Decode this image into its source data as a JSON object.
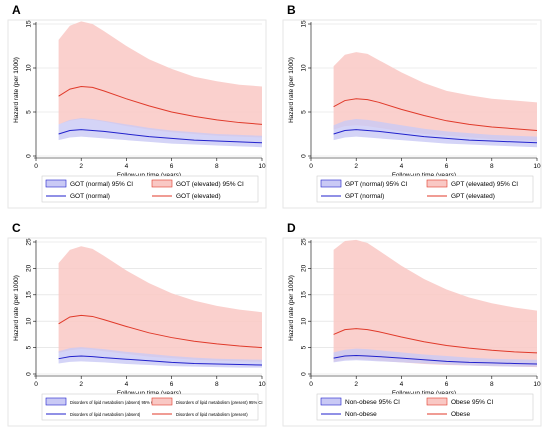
{
  "colors": {
    "normal_line": "#2222cc",
    "normal_fill": "#c9c9f5",
    "elevated_line": "#e03a2a",
    "elevated_fill": "#f9c8c4",
    "frame": "#e6e6e6",
    "plot_bg": "#ffffff",
    "grid": "#dcdcdc"
  },
  "chart_data": [
    {
      "panel": "A",
      "type": "area",
      "xlabel": "Follow-up time (years)",
      "ylabel": "Hazard rate (per 1000)",
      "xlim": [
        0,
        10
      ],
      "ylim": [
        0,
        15
      ],
      "xticks": [
        0,
        2,
        4,
        6,
        8,
        10
      ],
      "yticks": [
        0,
        5,
        10,
        15
      ],
      "x": [
        1,
        1.5,
        2,
        2.5,
        3,
        4,
        5,
        6,
        7,
        8,
        9,
        10
      ],
      "series": [
        {
          "name": "GOT (normal)",
          "color_key": "normal",
          "values": [
            2.5,
            2.9,
            3.0,
            2.9,
            2.8,
            2.5,
            2.2,
            2.0,
            1.8,
            1.7,
            1.6,
            1.5
          ],
          "lower": [
            1.8,
            2.1,
            2.2,
            2.1,
            2.0,
            1.8,
            1.6,
            1.4,
            1.3,
            1.2,
            1.1,
            1.0
          ],
          "upper": [
            3.6,
            4.1,
            4.3,
            4.2,
            4.0,
            3.6,
            3.2,
            2.9,
            2.7,
            2.5,
            2.4,
            2.3
          ]
        },
        {
          "name": "GOT (elevated)",
          "color_key": "elevated",
          "values": [
            6.8,
            7.6,
            7.9,
            7.8,
            7.4,
            6.5,
            5.7,
            5.0,
            4.5,
            4.1,
            3.8,
            3.6
          ],
          "lower": [
            3.6,
            4.0,
            4.2,
            4.1,
            3.9,
            3.4,
            3.0,
            2.7,
            2.5,
            2.3,
            2.2,
            2.1
          ],
          "upper": [
            13.2,
            14.8,
            15.3,
            15.0,
            14.2,
            12.5,
            11.0,
            9.9,
            9.0,
            8.5,
            8.1,
            7.9
          ]
        }
      ],
      "legend": {
        "position": "bottom",
        "entries": [
          "GOT (normal) 95% CI",
          "GOT (elevated) 95% CI",
          "GOT (normal)",
          "GOT (elevated)"
        ],
        "small": false
      }
    },
    {
      "panel": "B",
      "type": "area",
      "xlabel": "Follow-up time (years)",
      "ylabel": "Hazard rate (per 1000)",
      "xlim": [
        0,
        10
      ],
      "ylim": [
        0,
        15
      ],
      "xticks": [
        0,
        2,
        4,
        6,
        8,
        10
      ],
      "yticks": [
        0,
        5,
        10,
        15
      ],
      "x": [
        1,
        1.5,
        2,
        2.5,
        3,
        4,
        5,
        6,
        7,
        8,
        9,
        10
      ],
      "series": [
        {
          "name": "GPT (normal)",
          "color_key": "normal",
          "values": [
            2.5,
            2.9,
            3.0,
            2.9,
            2.8,
            2.5,
            2.2,
            2.0,
            1.8,
            1.7,
            1.6,
            1.5
          ],
          "lower": [
            1.8,
            2.1,
            2.2,
            2.1,
            2.0,
            1.8,
            1.6,
            1.4,
            1.3,
            1.2,
            1.1,
            1.0
          ],
          "upper": [
            3.5,
            4.0,
            4.2,
            4.1,
            3.9,
            3.5,
            3.1,
            2.8,
            2.6,
            2.4,
            2.3,
            2.2
          ]
        },
        {
          "name": "GPT (elevated)",
          "color_key": "elevated",
          "values": [
            5.6,
            6.3,
            6.5,
            6.4,
            6.1,
            5.3,
            4.6,
            4.0,
            3.6,
            3.3,
            3.1,
            2.9
          ],
          "lower": [
            3.0,
            3.4,
            3.5,
            3.4,
            3.2,
            2.8,
            2.5,
            2.3,
            2.1,
            1.9,
            1.8,
            1.7
          ],
          "upper": [
            10.2,
            11.5,
            11.8,
            11.6,
            10.9,
            9.5,
            8.3,
            7.4,
            6.9,
            6.5,
            6.3,
            6.1
          ]
        }
      ],
      "legend": {
        "position": "bottom",
        "entries": [
          "GPT (normal) 95% CI",
          "GPT (elevated) 95% CI",
          "GPT (normal)",
          "GPT (elevated)"
        ],
        "small": false
      }
    },
    {
      "panel": "C",
      "type": "area",
      "xlabel": "Follow-up time (years)",
      "ylabel": "Hazard rate (per 1000)",
      "xlim": [
        0,
        10
      ],
      "ylim": [
        0,
        25
      ],
      "xticks": [
        0,
        2,
        4,
        6,
        8,
        10
      ],
      "yticks": [
        0,
        5,
        10,
        15,
        20,
        25
      ],
      "x": [
        1,
        1.5,
        2,
        2.5,
        3,
        4,
        5,
        6,
        7,
        8,
        9,
        10
      ],
      "series": [
        {
          "name": "Disorders of lipid metabolism (absent)",
          "color_key": "normal",
          "values": [
            2.9,
            3.3,
            3.4,
            3.3,
            3.1,
            2.8,
            2.5,
            2.2,
            2.0,
            1.9,
            1.8,
            1.7
          ],
          "lower": [
            2.0,
            2.3,
            2.4,
            2.3,
            2.2,
            1.9,
            1.7,
            1.5,
            1.4,
            1.3,
            1.2,
            1.2
          ],
          "upper": [
            4.3,
            4.9,
            5.1,
            4.9,
            4.7,
            4.2,
            3.8,
            3.4,
            3.1,
            2.9,
            2.8,
            2.7
          ]
        },
        {
          "name": "Disorders of lipid metabolism (present)",
          "color_key": "elevated",
          "values": [
            9.5,
            10.8,
            11.1,
            10.9,
            10.3,
            9.0,
            7.8,
            6.9,
            6.2,
            5.7,
            5.3,
            5.0
          ],
          "lower": [
            4.0,
            4.5,
            4.7,
            4.6,
            4.3,
            3.8,
            3.3,
            3.0,
            2.7,
            2.5,
            2.4,
            2.3
          ],
          "upper": [
            21.0,
            23.5,
            24.2,
            23.7,
            22.4,
            19.6,
            17.2,
            15.3,
            13.9,
            12.9,
            12.2,
            11.7
          ]
        }
      ],
      "legend": {
        "position": "bottom",
        "entries": [
          "Disorders of lipid metabolism (absent) 95% CI",
          "Disorders of lipid metabolism (present) 95% CI",
          "Disorders of lipid metabolism (absent)",
          "Disorders of lipid metabolism (present)"
        ],
        "small": true
      }
    },
    {
      "panel": "D",
      "type": "area",
      "xlabel": "Follow-up time (years)",
      "ylabel": "Hazard rate (per 1000)",
      "xlim": [
        0,
        10
      ],
      "ylim": [
        0,
        25
      ],
      "xticks": [
        0,
        2,
        4,
        6,
        8,
        10
      ],
      "yticks": [
        0,
        5,
        10,
        15,
        20,
        25
      ],
      "x": [
        1,
        1.5,
        2,
        2.5,
        3,
        4,
        5,
        6,
        7,
        8,
        9,
        10
      ],
      "series": [
        {
          "name": "Non-obese",
          "color_key": "normal",
          "values": [
            3.0,
            3.4,
            3.5,
            3.4,
            3.3,
            3.0,
            2.7,
            2.4,
            2.2,
            2.1,
            2.0,
            1.9
          ],
          "lower": [
            2.2,
            2.5,
            2.6,
            2.5,
            2.4,
            2.2,
            2.0,
            1.8,
            1.6,
            1.5,
            1.4,
            1.4
          ],
          "upper": [
            4.1,
            4.6,
            4.8,
            4.7,
            4.5,
            4.1,
            3.7,
            3.4,
            3.1,
            2.9,
            2.8,
            2.7
          ]
        },
        {
          "name": "Obese",
          "color_key": "elevated",
          "values": [
            7.5,
            8.4,
            8.6,
            8.4,
            8.0,
            7.0,
            6.1,
            5.4,
            4.9,
            4.5,
            4.2,
            4.0
          ],
          "lower": [
            2.3,
            2.7,
            2.8,
            2.7,
            2.5,
            2.2,
            1.9,
            1.7,
            1.6,
            1.5,
            1.4,
            1.3
          ],
          "upper": [
            23.5,
            25.2,
            25.4,
            24.8,
            23.4,
            20.5,
            18.0,
            16.0,
            14.5,
            13.4,
            12.6,
            12.0
          ]
        }
      ],
      "legend": {
        "position": "bottom",
        "entries": [
          "Non-obese 95% CI",
          "Obese 95% CI",
          "Non-obese",
          "Obese"
        ],
        "small": false
      }
    }
  ]
}
